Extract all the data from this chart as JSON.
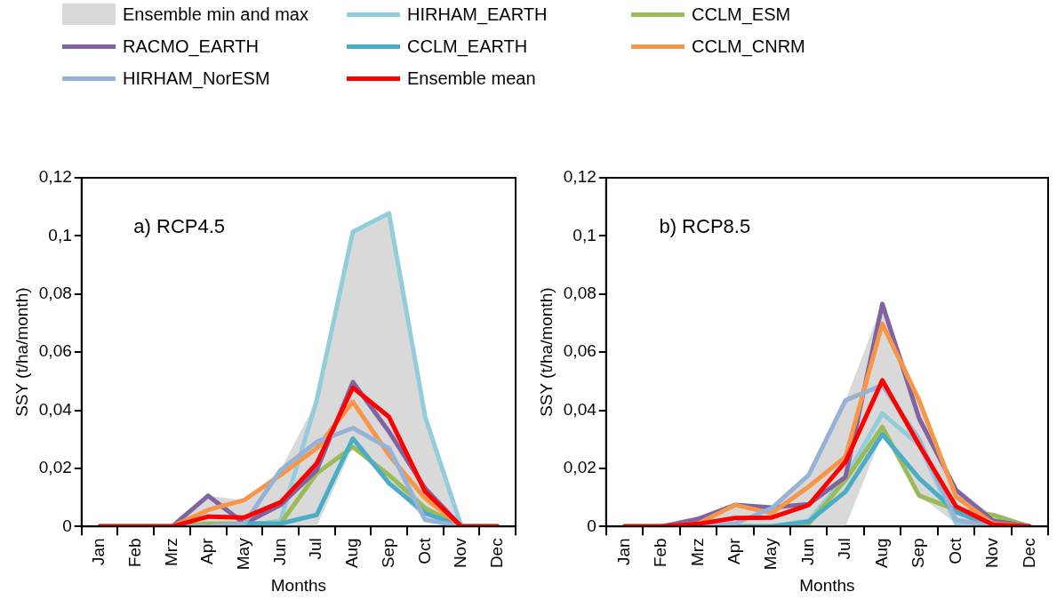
{
  "chart_data": [
    {
      "type": "line",
      "title": "a) RCP4.5",
      "xlabel": "Months",
      "ylabel": "SSY (t/ha/month)",
      "categories": [
        "Jan",
        "Feb",
        "Mrz",
        "Apr",
        "May",
        "Jun",
        "Jul",
        "Aug",
        "Sep",
        "Oct",
        "Nov",
        "Dec"
      ],
      "ylim": [
        0,
        0.12
      ],
      "yticks": [
        0,
        {
          "value": 0.02,
          "label": "0,02"
        },
        {
          "value": 0.04,
          "label": "0,04"
        },
        {
          "value": 0.06,
          "label": "0,06"
        },
        {
          "value": 0.08,
          "label": "0,08"
        },
        {
          "value": 0.1,
          "label": "0,1"
        },
        {
          "value": 0.12,
          "label": "0,12"
        }
      ],
      "grid": false,
      "legend": "top",
      "marker": "none",
      "line_style": "solid",
      "annotations": [
        "Ensemble min and max"
      ],
      "series": [
        {
          "name": "HIRHAM_EARTH",
          "color": "#92cddc",
          "values": [
            0,
            0,
            0,
            0,
            0,
            0.002,
            0.0434,
            0.1014,
            0.1078,
            0.0377,
            0,
            0
          ]
        },
        {
          "name": "CCLM_ESM",
          "color": "#9bbb59",
          "values": [
            0,
            0,
            0,
            0.001,
            0.001,
            0.001,
            0.0183,
            0.0274,
            0.0177,
            0.0063,
            0,
            0
          ]
        },
        {
          "name": "RACMO_EARTH",
          "color": "#8064a2",
          "values": [
            0,
            0,
            0,
            0.0106,
            0.001,
            0.0074,
            0.0194,
            0.0497,
            0.0326,
            0.0131,
            0,
            0
          ]
        },
        {
          "name": "CCLM_EARTH",
          "color": "#4bacc6",
          "values": [
            0,
            0,
            0,
            0,
            0.001,
            0.001,
            0.004,
            0.0303,
            0.0149,
            0.0046,
            0,
            0
          ]
        },
        {
          "name": "CCLM_CNRM",
          "color": "#f79646",
          "values": [
            0,
            0,
            0,
            0.0057,
            0.0091,
            0.0177,
            0.0269,
            0.0429,
            0.0246,
            0.0097,
            0,
            0
          ]
        },
        {
          "name": "HIRHAM_NorESM",
          "color": "#95b3d7",
          "values": [
            0,
            0,
            0,
            0,
            0.001,
            0.0194,
            0.0291,
            0.0339,
            0.0269,
            0.0023,
            0,
            0
          ]
        },
        {
          "name": "Ensemble mean",
          "color": "#ff0000",
          "values": [
            0,
            0,
            0,
            0.0034,
            0.0031,
            0.0083,
            0.0217,
            0.0478,
            0.0377,
            0.012,
            0,
            0
          ],
          "lower": [
            0,
            0,
            0,
            0,
            0,
            0,
            0,
            0.0274,
            0.0149,
            0.0023,
            0,
            0
          ],
          "upper": [
            0,
            0,
            0,
            0.0106,
            0.009,
            0.0194,
            0.0434,
            0.1014,
            0.1078,
            0.0377,
            0,
            0
          ]
        }
      ]
    },
    {
      "type": "line",
      "title": "b) RCP8.5",
      "xlabel": "Months",
      "ylabel": "SSY (t/ha/month)",
      "categories": [
        "Jan",
        "Feb",
        "Mrz",
        "Apr",
        "May",
        "Jun",
        "Jul",
        "Aug",
        "Sep",
        "Oct",
        "Nov",
        "Dec"
      ],
      "ylim": [
        0,
        0.12
      ],
      "yticks": [
        0,
        {
          "value": 0.02,
          "label": "0,02"
        },
        {
          "value": 0.04,
          "label": "0,04"
        },
        {
          "value": 0.06,
          "label": "0,06"
        },
        {
          "value": 0.08,
          "label": "0,08"
        },
        {
          "value": 0.1,
          "label": "0,1"
        },
        {
          "value": 0.12,
          "label": "0,12"
        }
      ],
      "grid": false,
      "marker": "none",
      "line_style": "solid",
      "series": [
        {
          "color": "#92cddc",
          "values": [
            0,
            0,
            0,
            0,
            0,
            0.002,
            0.017,
            0.0389,
            0.028,
            0.001,
            0,
            0
          ]
        },
        {
          "color": "#9bbb59",
          "values": [
            null,
            null,
            null,
            null,
            0,
            0.001,
            0.016,
            0.0343,
            0.0106,
            0.0057,
            0.004,
            0
          ]
        },
        {
          "color": "#8064a2",
          "values": [
            0,
            0,
            0.0026,
            0.0074,
            0.0065,
            0.0077,
            0.0171,
            0.0766,
            0.0371,
            0.0126,
            0.002,
            0
          ]
        },
        {
          "color": "#4bacc6",
          "values": [
            0,
            0,
            0,
            0,
            0,
            0.0017,
            0.012,
            0.0317,
            0.0166,
            0.005,
            0,
            0
          ]
        },
        {
          "color": "#f79646",
          "values": [
            0,
            0,
            0.001,
            0.0074,
            0.0046,
            0.0137,
            0.024,
            0.0697,
            0.0434,
            0.0103,
            0.001,
            0
          ]
        },
        {
          "color": "#95b3d7",
          "values": [
            0,
            0,
            0,
            0.001,
            0.0063,
            0.0177,
            0.0434,
            0.0486,
            0.03,
            0.0023,
            0,
            0
          ]
        },
        {
          "color": "#ff0000",
          "values": [
            0,
            0,
            0.0009,
            0.0029,
            0.0031,
            0.0074,
            0.0223,
            0.0503,
            0.028,
            0.0069,
            0.0006,
            0
          ],
          "lower": [
            0,
            0,
            0,
            0,
            0,
            0,
            0,
            0.0317,
            0.0106,
            0.001,
            0,
            0
          ],
          "upper": [
            0,
            0,
            0.0026,
            0.0074,
            0.0065,
            0.0177,
            0.0434,
            0.0766,
            0.0434,
            0.0126,
            0.004,
            0
          ]
        }
      ]
    }
  ]
}
